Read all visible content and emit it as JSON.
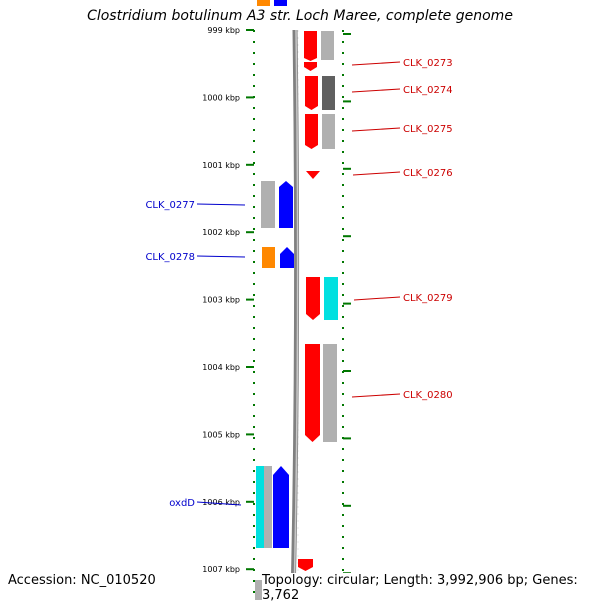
{
  "title": "Clostridium botulinum A3 str. Loch Maree, complete genome",
  "footer": {
    "accession": "Accession: NC_010520",
    "summary": "Topology: circular; Length: 3,992,906 bp; Genes: 3,762"
  },
  "colors": {
    "forward_red": "#ff0000",
    "reverse_blue": "#0000ff",
    "cyan": "#00e0e0",
    "orange": "#ff8800",
    "gray": "#b0b0b0",
    "dark_gray": "#606060",
    "tick_green": "#007700",
    "backbone": "#808080",
    "label_red": "#cc0000",
    "label_blue": "#0000cc"
  },
  "scale": {
    "unit": "kbp",
    "ticks": [
      "999 kbp",
      "1000 kbp",
      "1001 kbp",
      "1002 kbp",
      "1003 kbp",
      "1004 kbp",
      "1005 kbp",
      "1006 kbp",
      "1007 kbp"
    ]
  },
  "gene_labels": {
    "right": [
      "CLK_0273",
      "CLK_0274",
      "CLK_0275",
      "CLK_0276",
      "CLK_0279",
      "CLK_0280"
    ],
    "left": [
      "CLK_0277",
      "CLK_0278",
      "oxdD"
    ]
  }
}
